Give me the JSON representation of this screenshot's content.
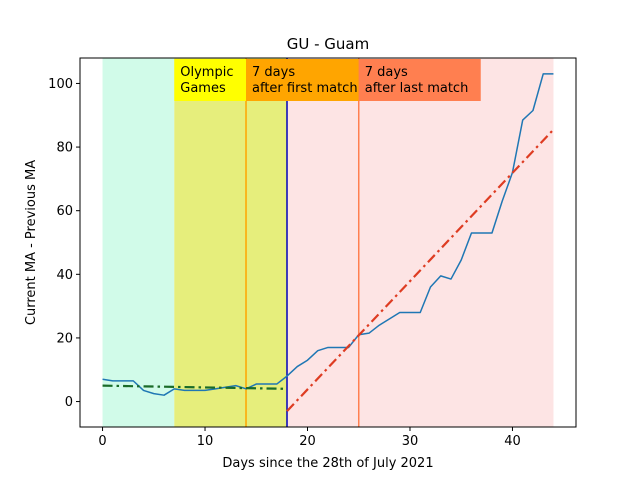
{
  "chart_data": {
    "type": "line",
    "title": "GU - Guam",
    "xlabel": "Days since the 28th of July 2021",
    "ylabel": "Current MA - Previous MA",
    "xlim": [
      -2.2,
      46.2
    ],
    "ylim": [
      -8,
      108
    ],
    "xticks": [
      0,
      10,
      20,
      30,
      40
    ],
    "yticks": [
      0,
      20,
      40,
      60,
      80,
      100
    ],
    "grid": false,
    "regions": [
      {
        "x0": 0,
        "x1": 7,
        "color": "#d1fbe9"
      },
      {
        "x0": 7,
        "x1": 18,
        "color": "#e6ee7c"
      },
      {
        "x0": 18,
        "x1": 44,
        "color": "#fde4e4"
      }
    ],
    "vlines": [
      {
        "x": 14,
        "color": "#ffa500"
      },
      {
        "x": 18,
        "color": "#0000bb"
      },
      {
        "x": 25,
        "color": "#ff7f50"
      }
    ],
    "annotations": [
      {
        "x": 7,
        "lines": [
          "Olympic",
          "Games"
        ],
        "bg": "#ffff00"
      },
      {
        "x": 14,
        "lines": [
          "7 days",
          "after first match"
        ],
        "bg": "#ffa500"
      },
      {
        "x": 25,
        "lines": [
          "7 days",
          "after last match"
        ],
        "bg": "#ff7f50"
      }
    ],
    "series": [
      {
        "style": "solid",
        "color": "#1f77b4",
        "x": [
          0,
          1,
          2,
          3,
          4,
          5,
          6,
          7,
          8,
          9,
          10,
          11,
          12,
          13,
          14,
          15,
          16,
          17,
          18,
          19,
          20,
          21,
          22,
          23,
          24,
          25,
          26,
          27,
          28,
          29,
          30,
          31,
          32,
          33,
          34,
          35,
          36,
          37,
          38,
          39,
          40,
          41,
          42,
          43,
          44
        ],
        "y": [
          7,
          6.5,
          6.5,
          6.5,
          3.5,
          2.5,
          2,
          4,
          3.5,
          3.5,
          3.5,
          4,
          4.5,
          5,
          4,
          5.5,
          5.5,
          5.5,
          8,
          11,
          13,
          16,
          17,
          17,
          17,
          21,
          21.5,
          24,
          26,
          28,
          28,
          28,
          36,
          39.5,
          38.5,
          44.5,
          53,
          53,
          53,
          63,
          72,
          88.5,
          91.5,
          103,
          103
        ]
      },
      {
        "style": "dashdot",
        "color": "#1a6b28",
        "x": [
          0,
          18
        ],
        "y": [
          5,
          4
        ]
      },
      {
        "style": "dashdot",
        "color": "#de3c22",
        "x": [
          18,
          44
        ],
        "y": [
          -3,
          85.5
        ]
      }
    ]
  }
}
